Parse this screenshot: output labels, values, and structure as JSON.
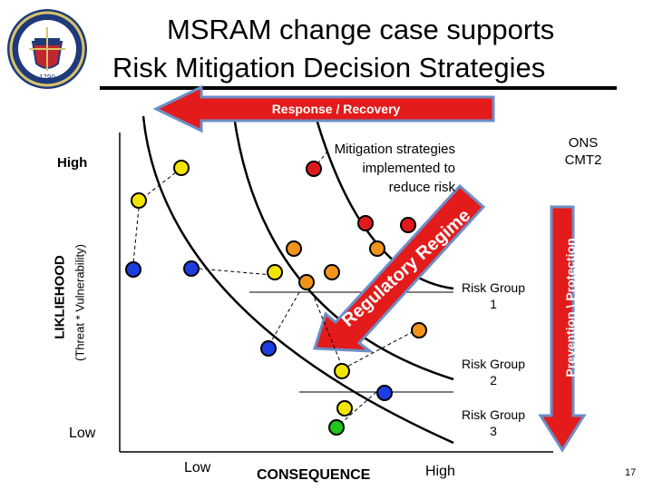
{
  "header": {
    "title_line1": "MSRAM change case supports",
    "title_line2": "Risk Mitigation Decision Strategies",
    "logo_text": "1790"
  },
  "diagram": {
    "y_axis": {
      "label": "LIKLIEHOOD",
      "sublabel": "(Threat * Vulnerability)",
      "high": "High",
      "low": "Low"
    },
    "x_axis": {
      "label": "CONSEQUENCE",
      "low": "Low",
      "high": "High"
    },
    "response_arrow_label": "Response / Recovery",
    "prevention_arrow_label": "Prevention \\ Protection",
    "regulatory_arrow_label": "Regulatory Regime",
    "ons_label": "ONS\nCMT2",
    "mitigation_note": "Mitigation strategies\nimplemented to\nreduce risk",
    "risk_groups": [
      "Risk Group\n1",
      "Risk Group\n2",
      "Risk Group\n3"
    ],
    "marker_colors": {
      "yellow": "#f2e600",
      "orange": "#f0941c",
      "red": "#e01a1a",
      "blue": "#1c3ee0",
      "green": "#22c41e"
    }
  },
  "footer": {
    "page_number": "17"
  }
}
